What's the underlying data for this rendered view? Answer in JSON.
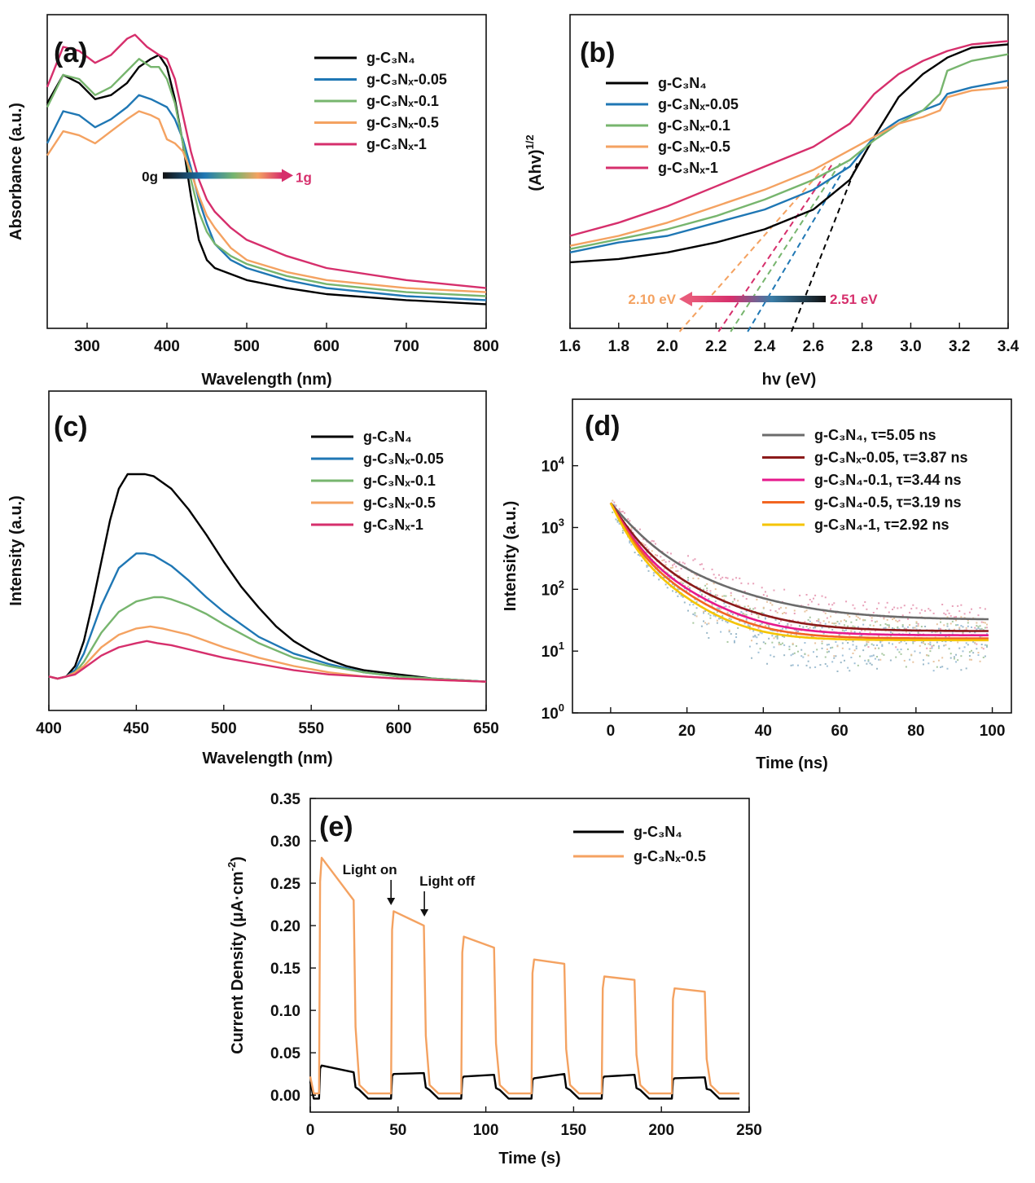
{
  "chart_data": [
    {
      "panel": "(a)",
      "type": "line",
      "xlabel": "Wavelength (nm)",
      "ylabel": "Absorbance (a.u.)",
      "xlim": [
        250,
        800
      ],
      "xticks": [
        300,
        400,
        500,
        600,
        700,
        800
      ],
      "yticks": [],
      "legend_position": "top-right",
      "series": [
        {
          "name": "g-C₃N₄",
          "color": "#000000",
          "x": [
            250,
            270,
            290,
            310,
            330,
            350,
            365,
            380,
            390,
            400,
            410,
            420,
            430,
            440,
            450,
            460,
            480,
            500,
            550,
            600,
            700,
            800
          ],
          "y": [
            0.56,
            0.63,
            0.61,
            0.57,
            0.58,
            0.61,
            0.65,
            0.67,
            0.68,
            0.65,
            0.57,
            0.46,
            0.33,
            0.22,
            0.17,
            0.15,
            0.135,
            0.12,
            0.1,
            0.085,
            0.07,
            0.06
          ]
        },
        {
          "name": "g-C₃Nₓ-0.05",
          "color": "#1f77b4",
          "x": [
            250,
            270,
            290,
            310,
            330,
            350,
            365,
            380,
            390,
            400,
            410,
            420,
            430,
            440,
            450,
            460,
            480,
            500,
            550,
            600,
            700,
            800
          ],
          "y": [
            0.46,
            0.54,
            0.53,
            0.5,
            0.52,
            0.55,
            0.58,
            0.57,
            0.56,
            0.55,
            0.52,
            0.47,
            0.4,
            0.32,
            0.26,
            0.21,
            0.17,
            0.15,
            0.12,
            0.1,
            0.08,
            0.07
          ]
        },
        {
          "name": "g-C₃Nₓ-0.1",
          "color": "#77b56e",
          "x": [
            250,
            270,
            290,
            310,
            330,
            350,
            365,
            380,
            390,
            400,
            410,
            420,
            430,
            440,
            450,
            460,
            480,
            500,
            550,
            600,
            700,
            800
          ],
          "y": [
            0.55,
            0.63,
            0.62,
            0.58,
            0.6,
            0.64,
            0.67,
            0.65,
            0.65,
            0.62,
            0.56,
            0.46,
            0.37,
            0.29,
            0.24,
            0.21,
            0.18,
            0.16,
            0.13,
            0.11,
            0.09,
            0.08
          ]
        },
        {
          "name": "g-C₃Nₓ-0.5",
          "color": "#f4a261",
          "x": [
            250,
            270,
            290,
            310,
            330,
            350,
            365,
            380,
            390,
            400,
            410,
            420,
            430,
            440,
            450,
            460,
            480,
            500,
            550,
            600,
            700,
            800
          ],
          "y": [
            0.43,
            0.49,
            0.48,
            0.46,
            0.49,
            0.52,
            0.54,
            0.53,
            0.52,
            0.47,
            0.46,
            0.44,
            0.39,
            0.33,
            0.28,
            0.25,
            0.2,
            0.17,
            0.14,
            0.12,
            0.1,
            0.09
          ]
        },
        {
          "name": "g-C₃Nₓ-1",
          "color": "#d62f6c",
          "x": [
            250,
            270,
            290,
            310,
            330,
            350,
            360,
            375,
            390,
            400,
            410,
            420,
            430,
            440,
            450,
            460,
            480,
            500,
            550,
            600,
            700,
            800
          ],
          "y": [
            0.6,
            0.7,
            0.69,
            0.66,
            0.68,
            0.72,
            0.73,
            0.7,
            0.68,
            0.67,
            0.62,
            0.53,
            0.44,
            0.37,
            0.32,
            0.29,
            0.25,
            0.22,
            0.18,
            0.15,
            0.12,
            0.1
          ]
        }
      ],
      "annotations": [
        {
          "text": "0g",
          "x": 320,
          "y": 0.38
        },
        {
          "text": "1g",
          "x": 575,
          "y": 0.38
        }
      ]
    },
    {
      "panel": "(b)",
      "type": "line",
      "xlabel": "hv (eV)",
      "ylabel": "(Ahv)",
      "ylabel_sup": "1/2",
      "xlim": [
        1.6,
        3.4
      ],
      "xticks": [
        1.6,
        1.8,
        2.0,
        2.2,
        2.4,
        2.6,
        2.8,
        3.0,
        3.2,
        3.4
      ],
      "yticks": [],
      "legend_position": "top-left",
      "series": [
        {
          "name": "g-C₃N₄",
          "color": "#000000",
          "x": [
            1.6,
            1.8,
            2.0,
            2.2,
            2.4,
            2.6,
            2.75,
            2.85,
            2.95,
            3.05,
            3.15,
            3.25,
            3.4
          ],
          "y": [
            0.2,
            0.21,
            0.23,
            0.26,
            0.3,
            0.36,
            0.45,
            0.58,
            0.7,
            0.77,
            0.82,
            0.85,
            0.86
          ]
        },
        {
          "name": "g-C₃Nₓ-0.05",
          "color": "#1f77b4",
          "x": [
            1.6,
            1.8,
            2.0,
            2.2,
            2.4,
            2.6,
            2.75,
            2.85,
            2.95,
            3.05,
            3.12,
            3.15,
            3.25,
            3.4
          ],
          "y": [
            0.23,
            0.26,
            0.28,
            0.32,
            0.36,
            0.42,
            0.49,
            0.58,
            0.63,
            0.66,
            0.68,
            0.71,
            0.73,
            0.75
          ]
        },
        {
          "name": "g-C₃Nₓ-0.1",
          "color": "#77b56e",
          "x": [
            1.6,
            1.8,
            2.0,
            2.2,
            2.4,
            2.6,
            2.75,
            2.85,
            2.95,
            3.05,
            3.12,
            3.15,
            3.25,
            3.4
          ],
          "y": [
            0.24,
            0.27,
            0.3,
            0.34,
            0.39,
            0.45,
            0.51,
            0.57,
            0.62,
            0.66,
            0.71,
            0.78,
            0.81,
            0.83
          ]
        },
        {
          "name": "g-C₃Nₓ-0.5",
          "color": "#f4a261",
          "x": [
            1.6,
            1.8,
            2.0,
            2.2,
            2.4,
            2.6,
            2.75,
            2.85,
            2.95,
            3.05,
            3.12,
            3.15,
            3.25,
            3.4
          ],
          "y": [
            0.25,
            0.28,
            0.32,
            0.37,
            0.42,
            0.48,
            0.54,
            0.58,
            0.62,
            0.64,
            0.66,
            0.7,
            0.72,
            0.73
          ]
        },
        {
          "name": "g-C₃Nₓ-1",
          "color": "#d62f6c",
          "x": [
            1.6,
            1.8,
            2.0,
            2.2,
            2.4,
            2.6,
            2.75,
            2.85,
            2.95,
            3.05,
            3.15,
            3.25,
            3.4
          ],
          "y": [
            0.28,
            0.32,
            0.37,
            0.43,
            0.49,
            0.55,
            0.62,
            0.71,
            0.77,
            0.81,
            0.84,
            0.86,
            0.87
          ]
        }
      ],
      "tangents": [
        {
          "color": "#000000",
          "x0": 2.51,
          "x1": 2.78
        },
        {
          "color": "#1f77b4",
          "x0": 2.33,
          "x1": 2.74
        },
        {
          "color": "#77b56e",
          "x0": 2.26,
          "x1": 2.71
        },
        {
          "color": "#d62f6c",
          "x0": 2.21,
          "x1": 2.68
        },
        {
          "color": "#f4a261",
          "x0": 2.05,
          "x1": 2.66
        }
      ],
      "annotations": [
        {
          "text": "2.10 eV",
          "x": 1.87,
          "y": 0.11,
          "color": "#f4a261"
        },
        {
          "text": "2.51 eV",
          "x": 2.95,
          "y": 0.11,
          "color": "#d62f6c"
        }
      ]
    },
    {
      "panel": "(c)",
      "type": "line",
      "xlabel": "Wavelength (nm)",
      "ylabel": "Intensity (a.u.)",
      "xlim": [
        400,
        650
      ],
      "xticks": [
        400,
        450,
        500,
        550,
        600,
        650
      ],
      "yticks": [],
      "legend_position": "top-right",
      "series": [
        {
          "name": "g-C₃N₄",
          "color": "#000000",
          "x": [
            400,
            405,
            410,
            415,
            420,
            425,
            430,
            435,
            440,
            445,
            450,
            455,
            460,
            470,
            480,
            490,
            500,
            510,
            520,
            530,
            540,
            550,
            560,
            570,
            580,
            600,
            620,
            650
          ],
          "y": [
            0.03,
            0.02,
            0.03,
            0.08,
            0.2,
            0.38,
            0.58,
            0.78,
            0.93,
            1.0,
            1.0,
            1.0,
            0.99,
            0.93,
            0.83,
            0.71,
            0.58,
            0.46,
            0.36,
            0.27,
            0.2,
            0.15,
            0.11,
            0.08,
            0.06,
            0.04,
            0.02,
            0.005
          ]
        },
        {
          "name": "g-C₃Nₓ-0.05",
          "color": "#1f77b4",
          "x": [
            400,
            405,
            410,
            415,
            420,
            430,
            440,
            450,
            455,
            460,
            470,
            480,
            490,
            500,
            520,
            540,
            560,
            580,
            600,
            650
          ],
          "y": [
            0.03,
            0.02,
            0.03,
            0.06,
            0.14,
            0.37,
            0.55,
            0.62,
            0.62,
            0.61,
            0.56,
            0.49,
            0.41,
            0.34,
            0.22,
            0.14,
            0.09,
            0.05,
            0.03,
            0.005
          ]
        },
        {
          "name": "g-C₃Nₓ-0.1",
          "color": "#77b56e",
          "x": [
            400,
            405,
            410,
            415,
            420,
            430,
            440,
            450,
            460,
            465,
            470,
            480,
            490,
            500,
            520,
            540,
            560,
            580,
            600,
            650
          ],
          "y": [
            0.03,
            0.02,
            0.03,
            0.05,
            0.1,
            0.24,
            0.34,
            0.39,
            0.41,
            0.41,
            0.4,
            0.37,
            0.33,
            0.28,
            0.19,
            0.12,
            0.08,
            0.05,
            0.03,
            0.005
          ]
        },
        {
          "name": "g-C₃Nₓ-0.5",
          "color": "#f4a261",
          "x": [
            400,
            405,
            410,
            415,
            420,
            430,
            440,
            450,
            458,
            465,
            470,
            480,
            490,
            500,
            520,
            540,
            560,
            580,
            600,
            650
          ],
          "y": [
            0.03,
            0.02,
            0.03,
            0.05,
            0.08,
            0.17,
            0.23,
            0.26,
            0.27,
            0.26,
            0.25,
            0.23,
            0.2,
            0.17,
            0.12,
            0.08,
            0.05,
            0.03,
            0.02,
            0.005
          ]
        },
        {
          "name": "g-C₃Nₓ-1",
          "color": "#d62f6c",
          "x": [
            400,
            405,
            410,
            415,
            420,
            430,
            440,
            450,
            456,
            462,
            470,
            480,
            490,
            500,
            520,
            540,
            560,
            580,
            600,
            650
          ],
          "y": [
            0.03,
            0.02,
            0.03,
            0.04,
            0.07,
            0.13,
            0.17,
            0.19,
            0.2,
            0.19,
            0.18,
            0.16,
            0.14,
            0.12,
            0.09,
            0.06,
            0.04,
            0.03,
            0.02,
            0.005
          ]
        }
      ]
    },
    {
      "panel": "(d)",
      "type": "scatter",
      "xlabel": "Time (ns)",
      "ylabel": "Intensity (a.u.)",
      "xlim": [
        -10,
        105
      ],
      "xticks": [
        0,
        20,
        40,
        60,
        80,
        100
      ],
      "ylog": true,
      "ylim": [
        1,
        100000
      ],
      "ytick_labels": [
        {
          "base": "10",
          "exp": "0",
          "value": 1
        },
        {
          "base": "10",
          "exp": "1",
          "value": 10
        },
        {
          "base": "10",
          "exp": "2",
          "value": 100
        },
        {
          "base": "10",
          "exp": "3",
          "value": 1000
        },
        {
          "base": "10",
          "exp": "4",
          "value": 10000
        }
      ],
      "legend_position": "top-right",
      "series": [
        {
          "name": "g-C₃N₄, τ=5.05 ns",
          "color": "#6b6b6b",
          "dot_color": "#e8a0b8",
          "A": 5500,
          "tau": 5.05,
          "floor": 32
        },
        {
          "name": "g-C₃Nₓ-0.05, τ=3.87 ns",
          "color": "#8b1a1a",
          "dot_color": "#e8c4a0",
          "A": 5500,
          "tau": 3.87,
          "floor": 21
        },
        {
          "name": "g-C₃N₄-0.1, τ=3.44 ns",
          "color": "#e6198c",
          "dot_color": "#a8c8a0",
          "A": 5500,
          "tau": 3.44,
          "floor": 18
        },
        {
          "name": "g-C₃N₄-0.5, τ=3.19 ns",
          "color": "#f26522",
          "dot_color": "#a0c0d8",
          "A": 5500,
          "tau": 3.19,
          "floor": 16
        },
        {
          "name": "g-C₃N₄-1, τ=2.92 ns",
          "color": "#f5c400",
          "dot_color": "#9ab8c8",
          "A": 5500,
          "tau": 2.92,
          "floor": 15
        }
      ]
    },
    {
      "panel": "(e)",
      "type": "line",
      "xlabel": "Time (s)",
      "ylabel": "Current Density (μA·cm",
      "ylabel_sup": "-2",
      "ylabel_tail": ")",
      "xlim": [
        0,
        250
      ],
      "ylim": [
        -0.02,
        0.35
      ],
      "xticks": [
        0,
        50,
        100,
        150,
        200,
        250
      ],
      "yticks": [
        0.0,
        0.05,
        0.1,
        0.15,
        0.2,
        0.25,
        0.3,
        0.35
      ],
      "ytick_labels": [
        "0.00",
        "0.05",
        "0.10",
        "0.15",
        "0.20",
        "0.25",
        "0.30",
        "0.35"
      ],
      "legend_position": "top-right",
      "series": [
        {
          "name": "g-C₃N₄",
          "color": "#000000",
          "on_levels": [
            [
              0.035,
              0.027
            ],
            [
              0.025,
              0.026
            ],
            [
              0.022,
              0.024
            ],
            [
              0.02,
              0.025
            ],
            [
              0.022,
              0.024
            ],
            [
              0.02,
              0.021
            ]
          ],
          "off_level": -0.004
        },
        {
          "name": "g-C₃Nₓ-0.5",
          "color": "#f4a261",
          "on_levels": [
            [
              0.28,
              0.23
            ],
            [
              0.217,
              0.2
            ],
            [
              0.187,
              0.174
            ],
            [
              0.16,
              0.155
            ],
            [
              0.14,
              0.136
            ],
            [
              0.126,
              0.122
            ]
          ],
          "off_level": 0.002
        }
      ],
      "cycles": [
        [
          5,
          25
        ],
        [
          46,
          65
        ],
        [
          86,
          105
        ],
        [
          126,
          145
        ],
        [
          166,
          185
        ],
        [
          206,
          225
        ]
      ],
      "x_end": 245,
      "annotations": [
        {
          "text": "Light on",
          "x": 46
        },
        {
          "text": "Light off",
          "x": 65
        }
      ]
    }
  ]
}
